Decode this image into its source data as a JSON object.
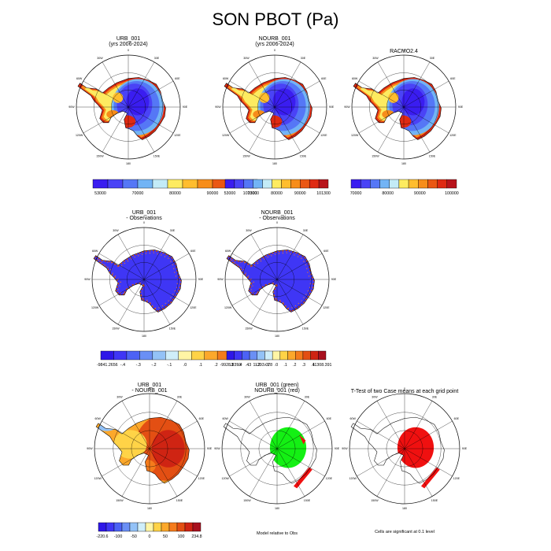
{
  "title": "SON PBOT (Pa)",
  "palettes": {
    "full": [
      "#3a1df0",
      "#4a43f6",
      "#5577f6",
      "#72b4f5",
      "#c3ebf7",
      "#fdeb60",
      "#ffbd2e",
      "#f78d1a",
      "#ea5713",
      "#df2a12",
      "#b8141b"
    ],
    "diff": [
      "#2e17e8",
      "#3f36f5",
      "#4c62f5",
      "#6a8ff5",
      "#93c2f7",
      "#cfeefa",
      "#fff5a5",
      "#ffd347",
      "#fca82b",
      "#f57c1c",
      "#e34f13",
      "#cf2413",
      "#a8101e"
    ],
    "sig_green": "#14f014",
    "sig_red": "#f01010"
  },
  "lon_labels": [
    "0",
    "30E",
    "60E",
    "90E",
    "120E",
    "150E",
    "180",
    "150W",
    "120W",
    "90W",
    "60W",
    "30W"
  ],
  "panels": [
    {
      "id": "p1",
      "title": [
        "URB_001",
        "(yrs 2006-2024)"
      ],
      "field": "full",
      "colorbar": {
        "palette": "full",
        "labels": [
          "53000",
          "70000",
          "80000",
          "90000",
          "101300"
        ]
      }
    },
    {
      "id": "p2",
      "title": [
        "NOURB_001",
        "(yrs 2006-2024)"
      ],
      "field": "full",
      "colorbar": {
        "palette": "full",
        "labels": [
          "53000",
          "70000",
          "80000",
          "90000",
          "101300"
        ]
      }
    },
    {
      "id": "p3",
      "title": [
        "RACMO2.4"
      ],
      "field": "full",
      "colorbar": {
        "palette": "full",
        "labels": [
          "70000",
          "80000",
          "90000",
          "100000"
        ]
      }
    },
    {
      "id": "p4",
      "title": [
        "URB_001",
        "- Observations"
      ],
      "field": "obsdiff",
      "colorbar": {
        "palette": "diff",
        "labels": [
          "-9841.2656",
          "-.4",
          "-.3",
          "-.2",
          "-.1",
          ".0",
          ".1",
          ".2",
          ".3",
          ".4",
          "11293.078"
        ]
      }
    },
    {
      "id": "p5",
      "title": [
        "NOURB_001",
        "- Observations"
      ],
      "field": "obsdiff",
      "colorbar": {
        "palette": "diff",
        "labels": [
          "-9928.8359",
          "-.4",
          "-.3",
          "-.2",
          "-.1",
          ".0",
          ".1",
          ".2",
          ".3",
          ".4",
          "11308.391"
        ]
      }
    },
    {
      "id": "p7",
      "title": [
        "URB_001",
        "- NOURB_001"
      ],
      "field": "casediff",
      "colorbar": {
        "palette": "diff",
        "labels": [
          "-220.6",
          "-100",
          "-50",
          "0",
          "50",
          "100",
          "234.8"
        ]
      }
    },
    {
      "id": "p8",
      "title": [
        "URB_001 (green)",
        "NOURB_001 (red)"
      ],
      "field": "sig2",
      "note": "Model relative to Obs"
    },
    {
      "id": "p9",
      "title": [
        "T-Test of two Case means at each grid point"
      ],
      "field": "sig1",
      "note": "Cells are significant at 0.1 level"
    }
  ]
}
